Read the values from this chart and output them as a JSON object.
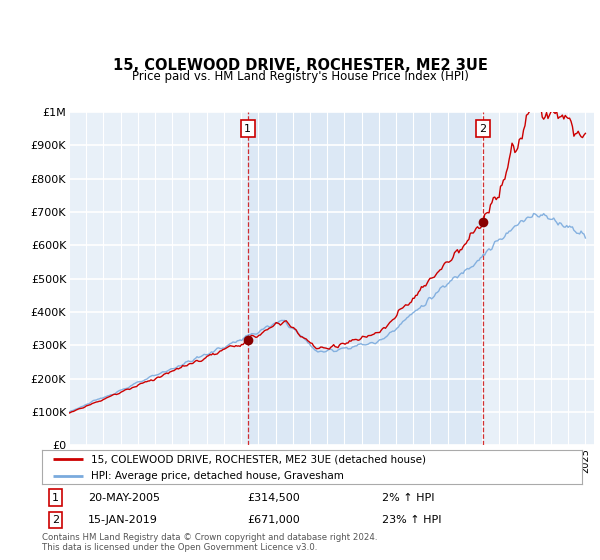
{
  "title": "15, COLEWOOD DRIVE, ROCHESTER, ME2 3UE",
  "subtitle": "Price paid vs. HM Land Registry's House Price Index (HPI)",
  "legend_line1": "15, COLEWOOD DRIVE, ROCHESTER, ME2 3UE (detached house)",
  "legend_line2": "HPI: Average price, detached house, Gravesham",
  "sale1_date": "20-MAY-2005",
  "sale1_price": "£314,500",
  "sale1_hpi": "2% ↑ HPI",
  "sale1_year": 2005.38,
  "sale1_value": 314500,
  "sale2_date": "15-JAN-2019",
  "sale2_price": "£671,000",
  "sale2_hpi": "23% ↑ HPI",
  "sale2_year": 2019.04,
  "sale2_value": 671000,
  "footer": "Contains HM Land Registry data © Crown copyright and database right 2024.\nThis data is licensed under the Open Government Licence v3.0.",
  "ylim": [
    0,
    1000000
  ],
  "xlim": [
    1995,
    2025.5
  ],
  "property_color": "#cc0000",
  "hpi_color": "#7aaadd",
  "vline_color": "#cc0000",
  "shade_color": "#dce8f5",
  "background_color": "#e8f0f8",
  "grid_color": "#ffffff",
  "yticks": [
    0,
    100000,
    200000,
    300000,
    400000,
    500000,
    600000,
    700000,
    800000,
    900000,
    1000000
  ],
  "ytick_labels": [
    "£0",
    "£100K",
    "£200K",
    "£300K",
    "£400K",
    "£500K",
    "£600K",
    "£700K",
    "£800K",
    "£900K",
    "£1M"
  ]
}
